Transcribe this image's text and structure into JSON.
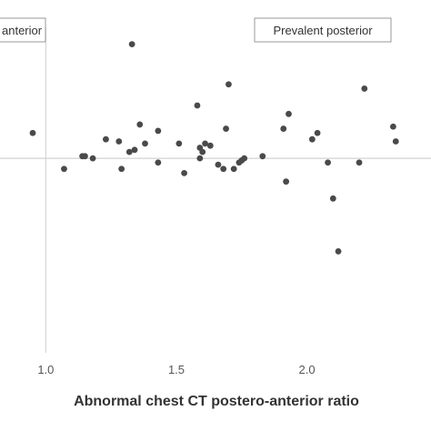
{
  "chart_data": {
    "type": "scatter",
    "title": "",
    "xlabel": "Abnormal chest CT postero-anterior ratio",
    "ylabel": "",
    "xlim": [
      0.95,
      2.36
    ],
    "ylim": [
      -0.92,
      0.62
    ],
    "grid": false,
    "zero_line": true,
    "annotations": [
      "anterior",
      "Prevalent posterior"
    ],
    "x_ticks": [
      {
        "value": 1.0,
        "label": "1.0"
      },
      {
        "value": 1.5,
        "label": "1.5"
      },
      {
        "value": 2.0,
        "label": "2.0"
      }
    ],
    "point_color": "#4a4a4a",
    "points": [
      {
        "x": 0.95,
        "y": 0.12
      },
      {
        "x": 1.07,
        "y": -0.05
      },
      {
        "x": 1.14,
        "y": 0.01
      },
      {
        "x": 1.15,
        "y": 0.01
      },
      {
        "x": 1.18,
        "y": 0.0
      },
      {
        "x": 1.23,
        "y": 0.09
      },
      {
        "x": 1.28,
        "y": 0.08
      },
      {
        "x": 1.29,
        "y": -0.05
      },
      {
        "x": 1.32,
        "y": 0.03
      },
      {
        "x": 1.33,
        "y": 0.54
      },
      {
        "x": 1.34,
        "y": 0.04
      },
      {
        "x": 1.36,
        "y": 0.16
      },
      {
        "x": 1.38,
        "y": 0.07
      },
      {
        "x": 1.43,
        "y": 0.13
      },
      {
        "x": 1.43,
        "y": -0.02
      },
      {
        "x": 1.51,
        "y": 0.07
      },
      {
        "x": 1.53,
        "y": -0.07
      },
      {
        "x": 1.58,
        "y": 0.25
      },
      {
        "x": 1.59,
        "y": 0.0
      },
      {
        "x": 1.59,
        "y": 0.05
      },
      {
        "x": 1.6,
        "y": 0.03
      },
      {
        "x": 1.61,
        "y": 0.07
      },
      {
        "x": 1.63,
        "y": 0.06
      },
      {
        "x": 1.66,
        "y": -0.03
      },
      {
        "x": 1.68,
        "y": -0.05
      },
      {
        "x": 1.69,
        "y": 0.14
      },
      {
        "x": 1.7,
        "y": 0.35
      },
      {
        "x": 1.72,
        "y": -0.05
      },
      {
        "x": 1.74,
        "y": -0.02
      },
      {
        "x": 1.75,
        "y": -0.01
      },
      {
        "x": 1.76,
        "y": 0.0
      },
      {
        "x": 1.83,
        "y": 0.01
      },
      {
        "x": 1.91,
        "y": 0.14
      },
      {
        "x": 1.92,
        "y": -0.11
      },
      {
        "x": 1.93,
        "y": 0.21
      },
      {
        "x": 2.02,
        "y": 0.09
      },
      {
        "x": 2.04,
        "y": 0.12
      },
      {
        "x": 2.08,
        "y": -0.02
      },
      {
        "x": 2.1,
        "y": -0.19
      },
      {
        "x": 2.12,
        "y": -0.44
      },
      {
        "x": 2.2,
        "y": -0.02
      },
      {
        "x": 2.22,
        "y": 0.33
      },
      {
        "x": 2.33,
        "y": 0.15
      },
      {
        "x": 2.34,
        "y": 0.08
      }
    ]
  }
}
